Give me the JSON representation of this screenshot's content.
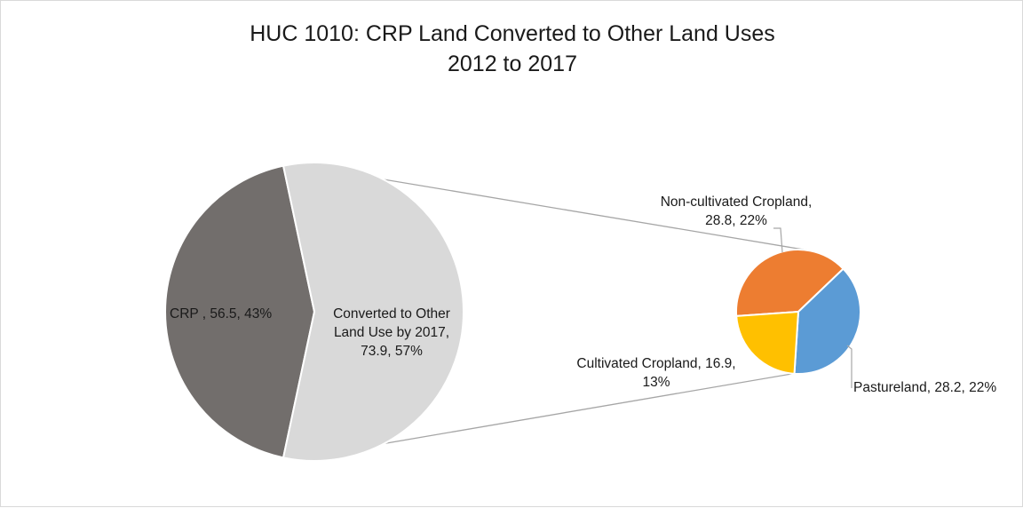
{
  "chart_data": {
    "type": "pie",
    "title": "HUC 1010: CRP Land Converted to Other Land Uses",
    "subtitle": "2012 to 2017",
    "main_pie": {
      "slices": [
        {
          "label": "CRP ",
          "value": 56.5,
          "percent": "43%",
          "color": "#726e6c"
        },
        {
          "label": "Converted to Other Land Use by 2017",
          "value": 73.9,
          "percent": "57%",
          "color": "#d9d9d9"
        }
      ]
    },
    "breakout_pie": {
      "of": "Converted to Other Land Use by 2017",
      "slices": [
        {
          "label": "Non-cultivated Cropland",
          "value": 28.8,
          "percent": "22%",
          "color": "#ed7d31"
        },
        {
          "label": "Pastureland",
          "value": 28.2,
          "percent": "22%",
          "color": "#5b9bd5"
        },
        {
          "label": "Cultivated Cropland",
          "value": 16.9,
          "percent": "13%",
          "color": "#ffc000"
        }
      ]
    },
    "data_labels": {
      "crp": [
        "CRP , 56.5, 43%"
      ],
      "converted": [
        "Converted to Other",
        "Land Use by 2017,",
        "73.9, 57%"
      ],
      "noncultivated": [
        "Non-cultivated Cropland,",
        "28.8, 22%"
      ],
      "pastureland": [
        "Pastureland, 28.2, 22%"
      ],
      "cultivated": [
        "Cultivated Cropland, 16.9,",
        "13%"
      ]
    }
  }
}
